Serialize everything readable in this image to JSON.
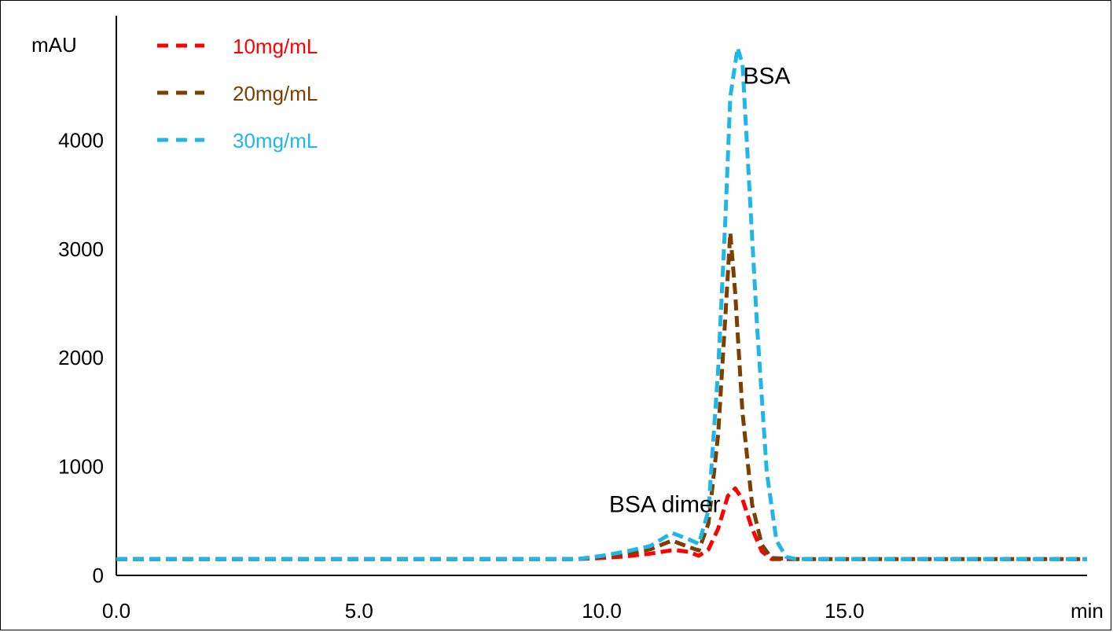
{
  "chart_data": {
    "type": "line",
    "ylabel": "mAU",
    "xlabel": "min",
    "xlim": [
      0,
      20
    ],
    "ylim": [
      0,
      5000
    ],
    "x_ticks": [
      "0.0",
      "5.0",
      "10.0",
      "15.0"
    ],
    "y_ticks": [
      "0",
      "1000",
      "2000",
      "3000",
      "4000"
    ],
    "legend_position": "top-left",
    "line_style": "dashed",
    "annotations": [
      {
        "text": "BSA",
        "x": 13.4,
        "y": 4520
      },
      {
        "text": "BSA dimer",
        "x": 11.3,
        "y": 580
      }
    ],
    "series": [
      {
        "name": "10mg/mL",
        "color": "#ff0000",
        "points": [
          [
            0,
            150
          ],
          [
            9.5,
            150
          ],
          [
            10.0,
            160
          ],
          [
            10.5,
            175
          ],
          [
            11.0,
            200
          ],
          [
            11.5,
            235
          ],
          [
            11.8,
            215
          ],
          [
            12.0,
            180
          ],
          [
            12.2,
            240
          ],
          [
            12.4,
            430
          ],
          [
            12.6,
            730
          ],
          [
            12.75,
            800
          ],
          [
            12.9,
            700
          ],
          [
            13.1,
            430
          ],
          [
            13.3,
            220
          ],
          [
            13.5,
            150
          ],
          [
            14.0,
            150
          ],
          [
            20,
            150
          ]
        ]
      },
      {
        "name": "20mg/mL",
        "color": "#7b3f00",
        "points": [
          [
            0,
            150
          ],
          [
            9.5,
            150
          ],
          [
            10.0,
            170
          ],
          [
            10.5,
            200
          ],
          [
            11.0,
            240
          ],
          [
            11.45,
            320
          ],
          [
            11.8,
            260
          ],
          [
            12.0,
            230
          ],
          [
            12.2,
            480
          ],
          [
            12.4,
            1300
          ],
          [
            12.55,
            2400
          ],
          [
            12.65,
            3150
          ],
          [
            12.75,
            2600
          ],
          [
            12.9,
            1500
          ],
          [
            13.1,
            650
          ],
          [
            13.3,
            280
          ],
          [
            13.5,
            160
          ],
          [
            14.0,
            150
          ],
          [
            20,
            150
          ]
        ]
      },
      {
        "name": "30mg/mL",
        "color": "#1fb6e8",
        "points": [
          [
            0,
            150
          ],
          [
            9.5,
            150
          ],
          [
            10.0,
            180
          ],
          [
            10.5,
            220
          ],
          [
            11.0,
            270
          ],
          [
            11.45,
            390
          ],
          [
            11.8,
            330
          ],
          [
            12.0,
            290
          ],
          [
            12.2,
            600
          ],
          [
            12.4,
            1900
          ],
          [
            12.55,
            3300
          ],
          [
            12.65,
            4400
          ],
          [
            12.8,
            4850
          ],
          [
            12.9,
            4700
          ],
          [
            13.0,
            3900
          ],
          [
            13.2,
            2300
          ],
          [
            13.4,
            950
          ],
          [
            13.6,
            320
          ],
          [
            13.8,
            170
          ],
          [
            14.0,
            150
          ],
          [
            20,
            150
          ]
        ]
      }
    ]
  }
}
